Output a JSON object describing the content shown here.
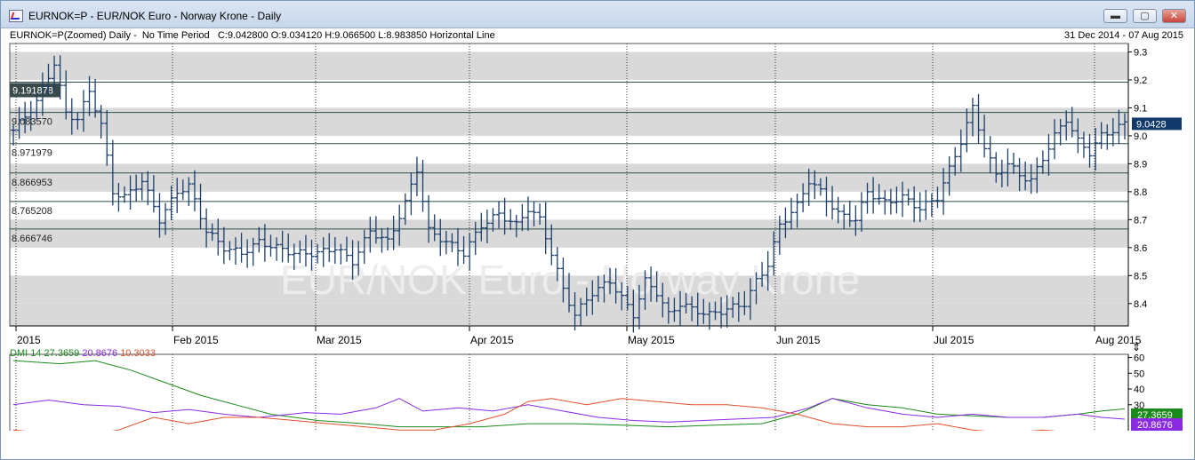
{
  "window": {
    "title": "EURNOK=P - EUR/NOK Euro - Norway Krone - Daily",
    "minimize_glyph": "▬",
    "maximize_glyph": "▢",
    "close_glyph": "✕"
  },
  "infobar": {
    "text": "EURNOK=P(Zoomed) Daily -  No Time Period   C:9.042800 O:9.034120 H:9.066500 L:8.983850 Horizontal Line",
    "date_range": "31 Dec 2014  -  07 Aug 2015"
  },
  "watermark": "EUR/NOK Euro - Norway Krone",
  "colors": {
    "ohlc": "#1c3f6e",
    "band": "#d9d9d9",
    "dmi_adx": "#1a8a1a",
    "dmi_plus": "#8a2be2",
    "dmi_minus": "#e0502a",
    "last_price_bg": "#123a6a"
  },
  "chart_data": [
    {
      "type": "ohlc",
      "name": "EURNOK=P",
      "y_axis_ticks": [
        "9.3",
        "9.2",
        "9.1",
        "9.0",
        "8.9",
        "8.8",
        "8.7",
        "8.6",
        "8.5",
        "8.4"
      ],
      "ylim": [
        8.32,
        9.33
      ],
      "x_axis_labels": [
        "2015",
        "Feb 2015",
        "Mar 2015",
        "Apr 2015",
        "May 2015",
        "Jun 2015",
        "Jul 2015",
        "Aug 2015"
      ],
      "last_price_label": "9.0428",
      "last_price": 9.0428,
      "horizontal_lines": [
        {
          "label": "9.191878",
          "value": 9.191878
        },
        {
          "label": "9.083570",
          "value": 9.08357
        },
        {
          "label": "8.971979",
          "value": 8.971979
        },
        {
          "label": "8.866953",
          "value": 8.866953
        },
        {
          "label": "8.765208",
          "value": 8.765208
        },
        {
          "label": "8.666746",
          "value": 8.666746
        }
      ],
      "anchors": [
        [
          0,
          9.02
        ],
        [
          4,
          9.12
        ],
        [
          7,
          9.26
        ],
        [
          9,
          9.08
        ],
        [
          11,
          9.06
        ],
        [
          13,
          9.16
        ],
        [
          15,
          9.04
        ],
        [
          17,
          8.8
        ],
        [
          19,
          8.78
        ],
        [
          22,
          8.84
        ],
        [
          25,
          8.7
        ],
        [
          28,
          8.8
        ],
        [
          30,
          8.82
        ],
        [
          33,
          8.66
        ],
        [
          36,
          8.6
        ],
        [
          39,
          8.58
        ],
        [
          42,
          8.62
        ],
        [
          45,
          8.6
        ],
        [
          48,
          8.58
        ],
        [
          52,
          8.58
        ],
        [
          55,
          8.6
        ],
        [
          58,
          8.55
        ],
        [
          61,
          8.66
        ],
        [
          64,
          8.62
        ],
        [
          67,
          8.76
        ],
        [
          69,
          8.88
        ],
        [
          71,
          8.66
        ],
        [
          74,
          8.62
        ],
        [
          77,
          8.58
        ],
        [
          80,
          8.68
        ],
        [
          83,
          8.72
        ],
        [
          86,
          8.68
        ],
        [
          88,
          8.74
        ],
        [
          90,
          8.7
        ],
        [
          92,
          8.58
        ],
        [
          94,
          8.45
        ],
        [
          96,
          8.36
        ],
        [
          99,
          8.44
        ],
        [
          102,
          8.48
        ],
        [
          104,
          8.42
        ],
        [
          106,
          8.36
        ],
        [
          108,
          8.48
        ],
        [
          110,
          8.44
        ],
        [
          112,
          8.36
        ],
        [
          114,
          8.4
        ],
        [
          116,
          8.38
        ],
        [
          119,
          8.36
        ],
        [
          122,
          8.38
        ],
        [
          125,
          8.4
        ],
        [
          127,
          8.48
        ],
        [
          129,
          8.54
        ],
        [
          131,
          8.68
        ],
        [
          134,
          8.75
        ],
        [
          136,
          8.84
        ],
        [
          138,
          8.8
        ],
        [
          141,
          8.72
        ],
        [
          144,
          8.7
        ],
        [
          146,
          8.8
        ],
        [
          149,
          8.76
        ],
        [
          152,
          8.78
        ],
        [
          155,
          8.74
        ],
        [
          158,
          8.78
        ],
        [
          160,
          8.88
        ],
        [
          162,
          8.98
        ],
        [
          164,
          9.1
        ],
        [
          166,
          8.96
        ],
        [
          168,
          8.86
        ],
        [
          170,
          8.9
        ],
        [
          172,
          8.86
        ],
        [
          174,
          8.84
        ],
        [
          176,
          8.92
        ],
        [
          178,
          9.0
        ],
        [
          180,
          9.06
        ],
        [
          182,
          8.98
        ],
        [
          184,
          8.94
        ],
        [
          186,
          9.0
        ],
        [
          188,
          9.02
        ],
        [
          190,
          9.043
        ]
      ]
    },
    {
      "type": "line",
      "name": "DMI 14",
      "legend_label": "DMI 14",
      "y_axis_ticks": [
        "60",
        "50",
        "40",
        "30"
      ],
      "ylim": [
        0,
        62
      ],
      "series": [
        {
          "name": "ADX",
          "label": "27.3659",
          "value": 27.3659,
          "color": "#1a8a1a",
          "points": [
            [
              0,
              58
            ],
            [
              8,
              56
            ],
            [
              14,
              58
            ],
            [
              20,
              52
            ],
            [
              26,
              44
            ],
            [
              32,
              36
            ],
            [
              38,
              30
            ],
            [
              44,
              24
            ],
            [
              52,
              20
            ],
            [
              60,
              18
            ],
            [
              66,
              16
            ],
            [
              72,
              16
            ],
            [
              80,
              16
            ],
            [
              88,
              18
            ],
            [
              96,
              18
            ],
            [
              104,
              17
            ],
            [
              112,
              16
            ],
            [
              120,
              17
            ],
            [
              128,
              18
            ],
            [
              134,
              24
            ],
            [
              140,
              34
            ],
            [
              146,
              30
            ],
            [
              152,
              28
            ],
            [
              158,
              24
            ],
            [
              164,
              23
            ],
            [
              170,
              22
            ],
            [
              176,
              22
            ],
            [
              182,
              24
            ],
            [
              186,
              26
            ],
            [
              190,
              27.37
            ]
          ]
        },
        {
          "name": "+DI",
          "label": "20.8676",
          "value": 20.8676,
          "color": "#8a2be2",
          "points": [
            [
              0,
              30
            ],
            [
              6,
              33
            ],
            [
              12,
              30
            ],
            [
              18,
              29
            ],
            [
              24,
              25
            ],
            [
              30,
              27
            ],
            [
              36,
              24
            ],
            [
              42,
              22
            ],
            [
              50,
              25
            ],
            [
              56,
              24
            ],
            [
              62,
              28
            ],
            [
              66,
              34
            ],
            [
              70,
              26
            ],
            [
              76,
              28
            ],
            [
              82,
              26
            ],
            [
              88,
              30
            ],
            [
              94,
              26
            ],
            [
              100,
              22
            ],
            [
              106,
              20
            ],
            [
              112,
              19
            ],
            [
              118,
              20
            ],
            [
              124,
              21
            ],
            [
              130,
              22
            ],
            [
              136,
              28
            ],
            [
              140,
              34
            ],
            [
              146,
              28
            ],
            [
              152,
              24
            ],
            [
              158,
              22
            ],
            [
              164,
              24
            ],
            [
              170,
              22
            ],
            [
              176,
              22
            ],
            [
              182,
              24
            ],
            [
              186,
              22
            ],
            [
              190,
              20.87
            ]
          ]
        },
        {
          "name": "-DI",
          "label": "10.3033",
          "value": 10.3033,
          "color": "#e0502a",
          "points": [
            [
              0,
              14
            ],
            [
              6,
              12
            ],
            [
              12,
              10
            ],
            [
              18,
              14
            ],
            [
              24,
              22
            ],
            [
              30,
              18
            ],
            [
              36,
              22
            ],
            [
              42,
              22
            ],
            [
              48,
              20
            ],
            [
              54,
              18
            ],
            [
              60,
              16
            ],
            [
              66,
              14
            ],
            [
              72,
              14
            ],
            [
              78,
              18
            ],
            [
              84,
              24
            ],
            [
              88,
              32
            ],
            [
              92,
              34
            ],
            [
              98,
              30
            ],
            [
              104,
              34
            ],
            [
              110,
              32
            ],
            [
              116,
              30
            ],
            [
              122,
              30
            ],
            [
              128,
              28
            ],
            [
              134,
              24
            ],
            [
              140,
              18
            ],
            [
              146,
              16
            ],
            [
              152,
              16
            ],
            [
              158,
              18
            ],
            [
              164,
              14
            ],
            [
              170,
              12
            ],
            [
              176,
              14
            ],
            [
              182,
              12
            ],
            [
              186,
              12
            ],
            [
              190,
              10.3
            ]
          ]
        }
      ]
    }
  ]
}
